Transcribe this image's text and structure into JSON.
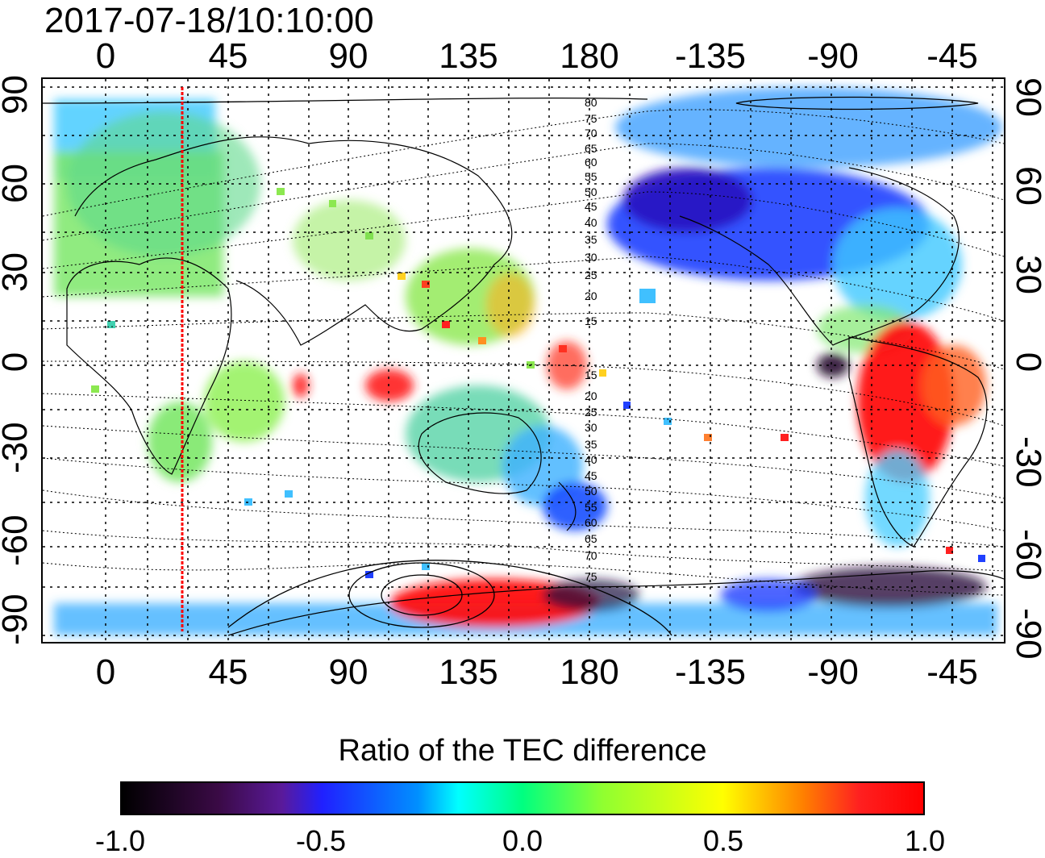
{
  "timestamp": "2017-07-18/10:10:00",
  "axes": {
    "lon_top": [
      "0",
      "45",
      "90",
      "135",
      "180",
      "-135",
      "-90",
      "-45"
    ],
    "lon_bottom": [
      "0",
      "45",
      "90",
      "135",
      "180",
      "-135",
      "-90",
      "-45"
    ],
    "lat_left": [
      "90",
      "60",
      "30",
      "0",
      "-30",
      "-60",
      "-90"
    ],
    "lat_right": [
      "90",
      "60",
      "30",
      "0",
      "-30",
      "-60",
      "-90"
    ]
  },
  "contour_labels": {
    "north": [
      "80",
      "75",
      "70",
      "65",
      "60",
      "55",
      "50",
      "45",
      "40",
      "35",
      "30",
      "25",
      "20",
      "15"
    ],
    "south": [
      "15",
      "20",
      "25",
      "30",
      "35",
      "40",
      "45",
      "50",
      "55",
      "60",
      "65",
      "70",
      "75"
    ]
  },
  "colorbar": {
    "title": "Ratio of the TEC difference",
    "ticks": [
      "-1.0",
      "-0.5",
      "0.0",
      "0.5",
      "1.0"
    ]
  },
  "colors": {
    "marker_line": "#ff0000",
    "grid": "#000000"
  }
}
